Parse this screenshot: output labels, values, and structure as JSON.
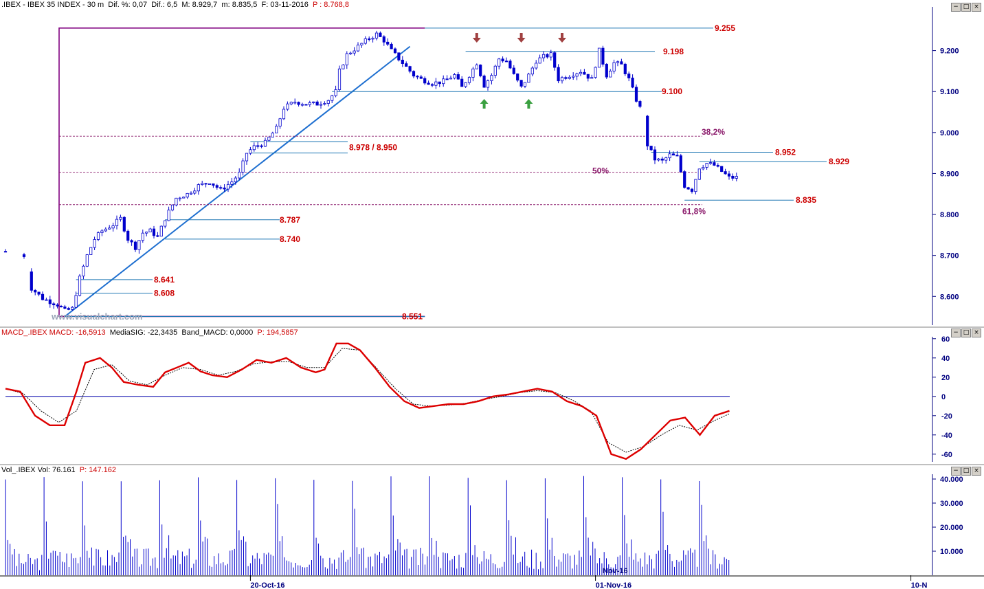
{
  "price_header": {
    "name": ".IBEX - IBEX 35 INDEX -  30 m",
    "dif_pct": "Dif. %: 0,07",
    "dif": "Dif.: 6,5",
    "max": "M: 8.929,7",
    "min": "m: 8.835,5",
    "date": "F: 03-11-2016",
    "last": "P : 8.768,8"
  },
  "macd_header": {
    "macd": "MACD_.IBEX MACD: -16,5913",
    "signal": "MediaSIG: -22,3435",
    "band": "Band_MACD: 0,0000",
    "p": "P: 194,5857"
  },
  "vol_header": {
    "vol": "Vol_.IBEX Vol: 76.161",
    "p": "P: 147.162"
  },
  "watermark": "www.visualchart.com",
  "colors": {
    "candle": "#0000cc",
    "trend": "#1e6fd0",
    "level_line": "#1f77b4",
    "level_label": "#cc0000",
    "fib": "#8b1a6b",
    "frame": "#800080",
    "macd": "#dd0000",
    "signal": "#000000",
    "arrow_down": "#a04040",
    "arrow_up": "#3aa040",
    "axis": "#000080"
  },
  "window_buttons": [
    "−",
    "□",
    "×"
  ],
  "chart_data": [
    {
      "type": "candlestick",
      "panel": "price",
      "ylim": [
        8530,
        9300
      ],
      "yticks": [
        "9.200",
        "9.100",
        "9.000",
        "8.900",
        "8.800",
        "8.700",
        "8.600"
      ],
      "ytick_values": [
        9200,
        9100,
        9000,
        8900,
        8800,
        8700,
        8600
      ],
      "xticks": [
        "20-Oct-16",
        "01-Nov-16",
        "10-N"
      ],
      "xtick_bars": [
        66,
        159,
        244
      ],
      "bars_visible": 197,
      "close_path": [
        [
          0,
          8710
        ],
        [
          5,
          8700
        ],
        [
          7,
          8620
        ],
        [
          10,
          8595
        ],
        [
          14,
          8580
        ],
        [
          16,
          8565
        ],
        [
          18,
          8570
        ],
        [
          20,
          8645
        ],
        [
          22,
          8700
        ],
        [
          24,
          8740
        ],
        [
          26,
          8760
        ],
        [
          29,
          8775
        ],
        [
          31,
          8790
        ],
        [
          33,
          8740
        ],
        [
          35,
          8720
        ],
        [
          37,
          8755
        ],
        [
          39,
          8760
        ],
        [
          41,
          8745
        ],
        [
          43,
          8790
        ],
        [
          46,
          8840
        ],
        [
          49,
          8850
        ],
        [
          52,
          8870
        ],
        [
          55,
          8880
        ],
        [
          58,
          8860
        ],
        [
          61,
          8880
        ],
        [
          63,
          8900
        ],
        [
          65,
          8950
        ],
        [
          67,
          8965
        ],
        [
          70,
          8975
        ],
        [
          73,
          9010
        ],
        [
          75,
          9060
        ],
        [
          78,
          9075
        ],
        [
          81,
          9070
        ],
        [
          84,
          9070
        ],
        [
          87,
          9080
        ],
        [
          89,
          9100
        ],
        [
          90,
          9150
        ],
        [
          92,
          9190
        ],
        [
          95,
          9210
        ],
        [
          98,
          9230
        ],
        [
          100,
          9240
        ],
        [
          102,
          9225
        ],
        [
          104,
          9200
        ],
        [
          106,
          9180
        ],
        [
          108,
          9160
        ],
        [
          110,
          9140
        ],
        [
          112,
          9130
        ],
        [
          115,
          9120
        ],
        [
          118,
          9125
        ],
        [
          121,
          9140
        ],
        [
          123,
          9110
        ],
        [
          125,
          9140
        ],
        [
          127,
          9170
        ],
        [
          129,
          9115
        ],
        [
          131,
          9140
        ],
        [
          133,
          9180
        ],
        [
          135,
          9175
        ],
        [
          137,
          9140
        ],
        [
          139,
          9110
        ],
        [
          141,
          9140
        ],
        [
          143,
          9175
        ],
        [
          145,
          9185
        ],
        [
          147,
          9190
        ],
        [
          149,
          9130
        ],
        [
          152,
          9140
        ],
        [
          155,
          9150
        ],
        [
          158,
          9130
        ],
        [
          160,
          9200
        ],
        [
          162,
          9140
        ],
        [
          164,
          9170
        ],
        [
          166,
          9165
        ],
        [
          168,
          9130
        ],
        [
          170,
          9080
        ],
        [
          172,
          9040
        ],
        [
          173,
          8970
        ],
        [
          175,
          8935
        ],
        [
          177,
          8930
        ],
        [
          179,
          8945
        ],
        [
          181,
          8940
        ],
        [
          183,
          8870
        ],
        [
          185,
          8860
        ],
        [
          187,
          8915
        ],
        [
          189,
          8925
        ],
        [
          191,
          8920
        ],
        [
          193,
          8905
        ],
        [
          195,
          8890
        ]
      ],
      "levels": [
        {
          "label": "9.255",
          "value": 9255
        },
        {
          "label": "9.198",
          "value": 9198
        },
        {
          "label": "9.100",
          "value": 9100
        },
        {
          "label": "8.978 / 8.950",
          "value": 8978,
          "value2": 8950
        },
        {
          "label": "8.952",
          "value": 8952
        },
        {
          "label": "8.929",
          "value": 8929
        },
        {
          "label": "8.835",
          "value": 8835
        },
        {
          "label": "8.787",
          "value": 8787
        },
        {
          "label": "8.740",
          "value": 8740
        },
        {
          "label": "8.641",
          "value": 8641
        },
        {
          "label": "8.608",
          "value": 8608
        },
        {
          "label": "8.551",
          "value": 8551
        }
      ],
      "fib_levels": [
        {
          "label": "38,2%",
          "value": 8991
        },
        {
          "label": "50%",
          "value": 8903
        },
        {
          "label": "61,8%",
          "value": 8824
        }
      ],
      "arrows_down_bars": [
        127,
        139,
        150
      ],
      "arrows_up_bars": [
        129,
        141
      ]
    },
    {
      "type": "line",
      "panel": "macd",
      "ylim": [
        -68,
        62
      ],
      "yticks": [
        "60",
        "40",
        "20",
        "0",
        "-20",
        "-40",
        "-60"
      ],
      "ytick_values": [
        60,
        40,
        20,
        0,
        -20,
        -40,
        -60
      ],
      "series": [
        {
          "values": [
            [
              0,
              8
            ],
            [
              5,
              5
            ],
            [
              10,
              -20
            ],
            [
              15,
              -30
            ],
            [
              20,
              -30
            ],
            [
              24,
              5
            ],
            [
              27,
              35
            ],
            [
              32,
              40
            ],
            [
              36,
              30
            ],
            [
              40,
              15
            ],
            [
              45,
              12
            ],
            [
              50,
              10
            ],
            [
              54,
              25
            ],
            [
              58,
              30
            ],
            [
              62,
              35
            ],
            [
              66,
              26
            ],
            [
              70,
              22
            ],
            [
              75,
              20
            ],
            [
              80,
              28
            ],
            [
              85,
              38
            ],
            [
              90,
              35
            ],
            [
              95,
              40
            ],
            [
              100,
              30
            ],
            [
              105,
              25
            ],
            [
              108,
              28
            ],
            [
              112,
              55
            ],
            [
              116,
              55
            ],
            [
              120,
              48
            ],
            [
              125,
              30
            ],
            [
              130,
              10
            ],
            [
              135,
              -5
            ],
            [
              140,
              -12
            ],
            [
              145,
              -10
            ],
            [
              150,
              -8
            ],
            [
              155,
              -8
            ],
            [
              160,
              -5
            ],
            [
              165,
              0
            ],
            [
              170,
              2
            ],
            [
              175,
              5
            ],
            [
              180,
              8
            ],
            [
              185,
              5
            ],
            [
              190,
              -5
            ],
            [
              195,
              -10
            ],
            [
              200,
              -20
            ],
            [
              205,
              -60
            ],
            [
              210,
              -65
            ],
            [
              215,
              -55
            ],
            [
              220,
              -40
            ],
            [
              225,
              -25
            ],
            [
              230,
              -22
            ],
            [
              235,
              -40
            ],
            [
              240,
              -20
            ],
            [
              245,
              -15
            ]
          ]
        },
        {
          "values": [
            [
              0,
              8
            ],
            [
              6,
              3
            ],
            [
              12,
              -15
            ],
            [
              18,
              -27
            ],
            [
              24,
              -15
            ],
            [
              30,
              28
            ],
            [
              36,
              33
            ],
            [
              42,
              16
            ],
            [
              48,
              12
            ],
            [
              54,
              22
            ],
            [
              60,
              30
            ],
            [
              66,
              28
            ],
            [
              72,
              22
            ],
            [
              78,
              26
            ],
            [
              84,
              34
            ],
            [
              90,
              36
            ],
            [
              96,
              36
            ],
            [
              102,
              30
            ],
            [
              108,
              30
            ],
            [
              114,
              50
            ],
            [
              120,
              48
            ],
            [
              126,
              28
            ],
            [
              132,
              8
            ],
            [
              138,
              -8
            ],
            [
              144,
              -10
            ],
            [
              150,
              -9
            ],
            [
              156,
              -7
            ],
            [
              162,
              -3
            ],
            [
              168,
              0
            ],
            [
              174,
              4
            ],
            [
              180,
              6
            ],
            [
              186,
              4
            ],
            [
              192,
              -4
            ],
            [
              198,
              -15
            ],
            [
              204,
              -48
            ],
            [
              210,
              -58
            ],
            [
              216,
              -52
            ],
            [
              222,
              -40
            ],
            [
              228,
              -30
            ],
            [
              234,
              -35
            ],
            [
              240,
              -25
            ],
            [
              245,
              -18
            ]
          ]
        }
      ]
    },
    {
      "type": "bar",
      "panel": "volume",
      "ylim": [
        0,
        42000
      ],
      "yticks": [
        "40.000",
        "30.000",
        "20.000",
        "10.000"
      ],
      "ytick_values": [
        40000,
        30000,
        20000,
        10000
      ],
      "inner_label": "Nov-16",
      "session_bars": 17
    }
  ]
}
